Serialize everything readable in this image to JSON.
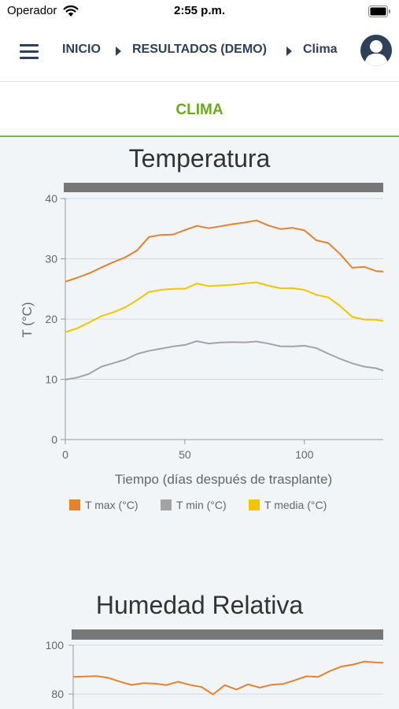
{
  "status_bar": {
    "carrier": "Operador",
    "time": "2:55 p.m."
  },
  "nav": {
    "breadcrumb": [
      "INICIO",
      "RESULTADOS (DEMO)",
      "Clima"
    ]
  },
  "section": {
    "title": "CLIMA"
  },
  "colors": {
    "tmax": "#e8822a",
    "tmin": "#a3a3a3",
    "tmean": "#f5c400",
    "humidity": "#e8822a",
    "bar": "#777777",
    "accent": "#6aaa1e",
    "nav_text": "#2f4159"
  },
  "chart_data": [
    {
      "type": "line",
      "title": "Temperatura",
      "xlabel": "Tiempo (días después de trasplante)",
      "ylabel": "T (°C)",
      "xlim": [
        0,
        133
      ],
      "ylim": [
        0,
        40
      ],
      "xticks": [
        0,
        50,
        100
      ],
      "yticks": [
        0,
        10,
        20,
        30,
        40
      ],
      "grid": true,
      "legend": "bottom",
      "x": [
        0,
        5,
        10,
        15,
        20,
        25,
        30,
        35,
        40,
        45,
        50,
        55,
        60,
        65,
        70,
        75,
        80,
        85,
        90,
        95,
        100,
        105,
        110,
        115,
        120,
        125,
        130,
        133
      ],
      "series": [
        {
          "name": "T max (°C)",
          "values": [
            26.2,
            26.8,
            27.5,
            28.4,
            29.3,
            30.1,
            31.3,
            33.6,
            34.0,
            34.1,
            34.9,
            35.6,
            35.2,
            35.5,
            35.8,
            36.0,
            36.3,
            35.4,
            34.8,
            35.0,
            34.6,
            33.0,
            32.6,
            30.8,
            28.6,
            28.8,
            28.1,
            28.0
          ]
        },
        {
          "name": "T min (°C)",
          "values": [
            9.9,
            10.3,
            11.0,
            12.2,
            12.8,
            13.4,
            14.3,
            14.8,
            15.1,
            15.4,
            15.6,
            16.2,
            15.8,
            16.0,
            16.1,
            16.1,
            16.3,
            16.0,
            15.6,
            15.6,
            15.7,
            15.3,
            14.3,
            13.4,
            12.6,
            12.0,
            11.7,
            11.3
          ]
        },
        {
          "name": "T media (°C)",
          "values": [
            17.9,
            18.5,
            19.4,
            20.4,
            21.0,
            21.8,
            23.0,
            24.4,
            24.8,
            25.0,
            25.1,
            26.0,
            25.6,
            25.7,
            25.8,
            26.0,
            26.1,
            25.5,
            25.0,
            25.0,
            24.7,
            23.9,
            23.5,
            22.1,
            20.4,
            20.0,
            20.0,
            19.8
          ]
        }
      ]
    },
    {
      "type": "line",
      "title": "Humedad Relativa",
      "ylim": [
        70,
        100
      ],
      "yticks": [
        80,
        100
      ],
      "xlim": [
        0,
        133
      ],
      "grid": true,
      "x": [
        0,
        5,
        10,
        15,
        20,
        25,
        30,
        35,
        40,
        45,
        50,
        55,
        60,
        65,
        70,
        75,
        80,
        85,
        90,
        95,
        100,
        105,
        110,
        115,
        120,
        125,
        130,
        133
      ],
      "series": [
        {
          "name": "",
          "values": [
            87,
            87.5,
            88,
            87.5,
            86,
            84.5,
            85,
            84.5,
            83.5,
            84.5,
            83,
            82,
            79,
            83,
            81.5,
            84,
            83,
            84.5,
            85,
            86.5,
            88,
            87.5,
            89.5,
            91,
            91.5,
            92.5,
            92,
            92
          ]
        }
      ]
    }
  ]
}
